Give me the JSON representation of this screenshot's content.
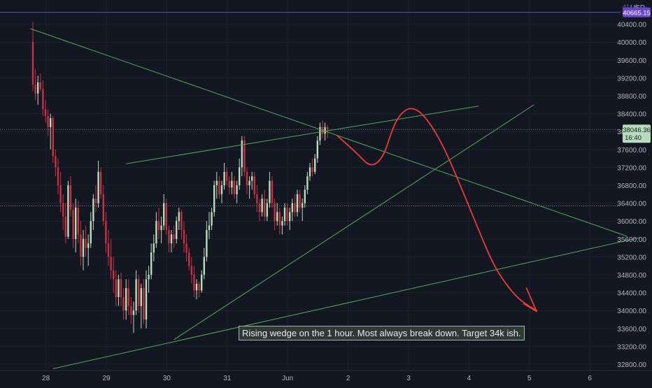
{
  "colors": {
    "background": "#131722",
    "grid": "#1e2230",
    "candle_up": "#b7dcbc",
    "candle_down": "#c9313f",
    "trendline": "#52a852",
    "drawing": "#ef3a34",
    "price_line": "#7a7f8a",
    "axis_text": "#b2b5be",
    "alert_line": "#5a4fc9",
    "alert_badge": "#6a46cc",
    "current_badge": "#b7dcbc",
    "annotation_bg": "#2f3a37"
  },
  "header": {
    "currency": "USD",
    "top_price_partial": "41...0"
  },
  "annotation": "Rising wedge on the 1 hour.  Most always break down.  Target 34k ish.",
  "current_price": {
    "label": "38046.36",
    "countdown": "16:40"
  },
  "alert_price": {
    "label": "40665.15"
  },
  "chart_data": {
    "type": "candlestick",
    "title": "",
    "xlabel": "",
    "ylabel": "",
    "ylim": [
      32650,
      41000
    ],
    "yticks": [
      32800,
      33200,
      33600,
      34000,
      34400,
      34800,
      35200,
      35600,
      36000,
      36400,
      36800,
      37200,
      37600,
      38000,
      38400,
      38800,
      39200,
      39600,
      40000,
      40400
    ],
    "ytick_labels": [
      "32800.00",
      "33200.00",
      "33600.00",
      "34000.00",
      "34400.00",
      "34800.00",
      "35200.00",
      "35600.00",
      "36000.00",
      "36400.00",
      "36800.00",
      "37200.00",
      "37600.00",
      "38000.00",
      "38400.00",
      "38800.00",
      "39200.00",
      "39600.00",
      "40000.00",
      "40400.00"
    ],
    "xticks": [
      {
        "label": "28",
        "t": 6
      },
      {
        "label": "29",
        "t": 30
      },
      {
        "label": "30",
        "t": 54
      },
      {
        "label": "31",
        "t": 78
      },
      {
        "label": "Jun",
        "t": 102
      },
      {
        "label": "2",
        "t": 126
      },
      {
        "label": "3",
        "t": 150
      },
      {
        "label": "4",
        "t": 174
      },
      {
        "label": "5",
        "t": 198
      },
      {
        "label": "6",
        "t": 222
      }
    ],
    "grid": true,
    "current_price": 38046.36,
    "alert_price": 40665.15,
    "horizontal_levels": [
      38046.36,
      36340
    ],
    "candles": [
      {
        "t": 0,
        "o": 40000,
        "h": 40450,
        "l": 38900,
        "c": 39050
      },
      {
        "t": 1,
        "o": 39050,
        "h": 39400,
        "l": 38700,
        "c": 38850
      },
      {
        "t": 2,
        "o": 38850,
        "h": 39250,
        "l": 38600,
        "c": 39100
      },
      {
        "t": 3,
        "o": 39100,
        "h": 39300,
        "l": 38900,
        "c": 38950
      },
      {
        "t": 4,
        "o": 38950,
        "h": 39150,
        "l": 38350,
        "c": 38500
      },
      {
        "t": 5,
        "o": 38500,
        "h": 38700,
        "l": 38200,
        "c": 38350
      },
      {
        "t": 6,
        "o": 38350,
        "h": 38500,
        "l": 37900,
        "c": 38100
      },
      {
        "t": 7,
        "o": 38100,
        "h": 38400,
        "l": 37600,
        "c": 38300
      },
      {
        "t": 8,
        "o": 38300,
        "h": 38350,
        "l": 37300,
        "c": 37450
      },
      {
        "t": 9,
        "o": 37450,
        "h": 37600,
        "l": 37000,
        "c": 37200
      },
      {
        "t": 10,
        "o": 37200,
        "h": 37400,
        "l": 36600,
        "c": 36800
      },
      {
        "t": 11,
        "o": 36800,
        "h": 37100,
        "l": 36200,
        "c": 36400
      },
      {
        "t": 12,
        "o": 36400,
        "h": 36600,
        "l": 35800,
        "c": 36100
      },
      {
        "t": 13,
        "o": 36100,
        "h": 36400,
        "l": 35500,
        "c": 35650
      },
      {
        "t": 14,
        "o": 35650,
        "h": 36900,
        "l": 35600,
        "c": 36800
      },
      {
        "t": 15,
        "o": 36800,
        "h": 37000,
        "l": 36100,
        "c": 36250
      },
      {
        "t": 16,
        "o": 36250,
        "h": 36400,
        "l": 35400,
        "c": 35600
      },
      {
        "t": 17,
        "o": 35600,
        "h": 36500,
        "l": 35300,
        "c": 36300
      },
      {
        "t": 18,
        "o": 36300,
        "h": 36450,
        "l": 35500,
        "c": 35700
      },
      {
        "t": 19,
        "o": 35700,
        "h": 36000,
        "l": 35000,
        "c": 35200
      },
      {
        "t": 20,
        "o": 35200,
        "h": 35800,
        "l": 34900,
        "c": 35600
      },
      {
        "t": 21,
        "o": 35600,
        "h": 35900,
        "l": 35200,
        "c": 35400
      },
      {
        "t": 22,
        "o": 35400,
        "h": 35700,
        "l": 35000,
        "c": 35500
      },
      {
        "t": 23,
        "o": 35500,
        "h": 36200,
        "l": 35400,
        "c": 36000
      },
      {
        "t": 24,
        "o": 36000,
        "h": 36600,
        "l": 35800,
        "c": 36500
      },
      {
        "t": 25,
        "o": 36500,
        "h": 36800,
        "l": 36200,
        "c": 36400
      },
      {
        "t": 26,
        "o": 36400,
        "h": 37350,
        "l": 36300,
        "c": 37100
      },
      {
        "t": 27,
        "o": 37100,
        "h": 37200,
        "l": 36500,
        "c": 36600
      },
      {
        "t": 28,
        "o": 36600,
        "h": 36800,
        "l": 35900,
        "c": 36000
      },
      {
        "t": 29,
        "o": 36000,
        "h": 36200,
        "l": 35300,
        "c": 35500
      },
      {
        "t": 30,
        "o": 35500,
        "h": 35800,
        "l": 35000,
        "c": 35200
      },
      {
        "t": 31,
        "o": 35200,
        "h": 35600,
        "l": 34700,
        "c": 34900
      },
      {
        "t": 32,
        "o": 34900,
        "h": 35200,
        "l": 34400,
        "c": 34700
      },
      {
        "t": 33,
        "o": 34700,
        "h": 34900,
        "l": 34100,
        "c": 34300
      },
      {
        "t": 34,
        "o": 34300,
        "h": 34800,
        "l": 34100,
        "c": 34700
      },
      {
        "t": 35,
        "o": 34700,
        "h": 34850,
        "l": 34100,
        "c": 34300
      },
      {
        "t": 36,
        "o": 34300,
        "h": 34500,
        "l": 33800,
        "c": 34000
      },
      {
        "t": 37,
        "o": 34000,
        "h": 34700,
        "l": 33800,
        "c": 34500
      },
      {
        "t": 38,
        "o": 34500,
        "h": 34700,
        "l": 33900,
        "c": 34100
      },
      {
        "t": 39,
        "o": 34100,
        "h": 34300,
        "l": 33700,
        "c": 33900
      },
      {
        "t": 40,
        "o": 33900,
        "h": 34200,
        "l": 33500,
        "c": 34000
      },
      {
        "t": 41,
        "o": 34000,
        "h": 34900,
        "l": 33900,
        "c": 34700
      },
      {
        "t": 42,
        "o": 34700,
        "h": 34800,
        "l": 33950,
        "c": 34100
      },
      {
        "t": 43,
        "o": 34100,
        "h": 34600,
        "l": 33600,
        "c": 34500
      },
      {
        "t": 44,
        "o": 34500,
        "h": 34700,
        "l": 33700,
        "c": 33800
      },
      {
        "t": 45,
        "o": 33800,
        "h": 34900,
        "l": 33600,
        "c": 34700
      },
      {
        "t": 46,
        "o": 34700,
        "h": 35000,
        "l": 34400,
        "c": 34800
      },
      {
        "t": 47,
        "o": 34800,
        "h": 35500,
        "l": 34700,
        "c": 35300
      },
      {
        "t": 48,
        "o": 35300,
        "h": 35700,
        "l": 35100,
        "c": 35500
      },
      {
        "t": 49,
        "o": 35500,
        "h": 36200,
        "l": 35400,
        "c": 36000
      },
      {
        "t": 50,
        "o": 36000,
        "h": 36300,
        "l": 35600,
        "c": 35800
      },
      {
        "t": 51,
        "o": 35800,
        "h": 36100,
        "l": 35500,
        "c": 35900
      },
      {
        "t": 52,
        "o": 35900,
        "h": 36600,
        "l": 35800,
        "c": 36400
      },
      {
        "t": 53,
        "o": 36400,
        "h": 36500,
        "l": 35700,
        "c": 35800
      },
      {
        "t": 54,
        "o": 35800,
        "h": 35900,
        "l": 35300,
        "c": 35500
      },
      {
        "t": 55,
        "o": 35500,
        "h": 35800,
        "l": 35300,
        "c": 35700
      },
      {
        "t": 56,
        "o": 35700,
        "h": 35900,
        "l": 35400,
        "c": 35600
      },
      {
        "t": 57,
        "o": 35600,
        "h": 36100,
        "l": 35500,
        "c": 36000
      },
      {
        "t": 58,
        "o": 36000,
        "h": 36300,
        "l": 35800,
        "c": 36200
      },
      {
        "t": 59,
        "o": 36200,
        "h": 36250,
        "l": 35600,
        "c": 35800
      },
      {
        "t": 60,
        "o": 35800,
        "h": 36000,
        "l": 35300,
        "c": 35500
      },
      {
        "t": 61,
        "o": 35500,
        "h": 35700,
        "l": 35100,
        "c": 35300
      },
      {
        "t": 62,
        "o": 35300,
        "h": 35400,
        "l": 34900,
        "c": 35000
      },
      {
        "t": 63,
        "o": 35000,
        "h": 35200,
        "l": 34600,
        "c": 34800
      },
      {
        "t": 64,
        "o": 34800,
        "h": 35000,
        "l": 34300,
        "c": 34450
      },
      {
        "t": 65,
        "o": 34450,
        "h": 34700,
        "l": 34250,
        "c": 34600
      },
      {
        "t": 66,
        "o": 34600,
        "h": 34650,
        "l": 34300,
        "c": 34450
      },
      {
        "t": 67,
        "o": 34450,
        "h": 34900,
        "l": 34400,
        "c": 34800
      },
      {
        "t": 68,
        "o": 34800,
        "h": 35400,
        "l": 34700,
        "c": 35200
      },
      {
        "t": 69,
        "o": 35200,
        "h": 36000,
        "l": 35100,
        "c": 35800
      },
      {
        "t": 70,
        "o": 35800,
        "h": 36200,
        "l": 35600,
        "c": 35900
      },
      {
        "t": 71,
        "o": 35900,
        "h": 36300,
        "l": 35800,
        "c": 36200
      },
      {
        "t": 72,
        "o": 36200,
        "h": 36900,
        "l": 36100,
        "c": 36800
      },
      {
        "t": 73,
        "o": 36800,
        "h": 37100,
        "l": 36500,
        "c": 36900
      },
      {
        "t": 74,
        "o": 36900,
        "h": 37000,
        "l": 36500,
        "c": 36600
      },
      {
        "t": 75,
        "o": 36600,
        "h": 36900,
        "l": 36400,
        "c": 36800
      },
      {
        "t": 76,
        "o": 36800,
        "h": 37300,
        "l": 36700,
        "c": 37100
      },
      {
        "t": 77,
        "o": 37100,
        "h": 37200,
        "l": 36800,
        "c": 36900
      },
      {
        "t": 78,
        "o": 36900,
        "h": 37000,
        "l": 36600,
        "c": 36750
      },
      {
        "t": 79,
        "o": 36750,
        "h": 37100,
        "l": 36600,
        "c": 36900
      },
      {
        "t": 80,
        "o": 36900,
        "h": 37000,
        "l": 36500,
        "c": 36600
      },
      {
        "t": 81,
        "o": 36600,
        "h": 36900,
        "l": 36400,
        "c": 36800
      },
      {
        "t": 82,
        "o": 36800,
        "h": 37400,
        "l": 36700,
        "c": 37200
      },
      {
        "t": 83,
        "o": 37200,
        "h": 37900,
        "l": 37000,
        "c": 37800
      },
      {
        "t": 84,
        "o": 37800,
        "h": 37900,
        "l": 37000,
        "c": 37100
      },
      {
        "t": 85,
        "o": 37100,
        "h": 37200,
        "l": 36600,
        "c": 36800
      },
      {
        "t": 86,
        "o": 36800,
        "h": 37000,
        "l": 36500,
        "c": 36900
      },
      {
        "t": 87,
        "o": 36900,
        "h": 37100,
        "l": 36700,
        "c": 37000
      },
      {
        "t": 88,
        "o": 37000,
        "h": 37100,
        "l": 36500,
        "c": 36600
      },
      {
        "t": 89,
        "o": 36600,
        "h": 36800,
        "l": 36200,
        "c": 36400
      },
      {
        "t": 90,
        "o": 36400,
        "h": 36500,
        "l": 36000,
        "c": 36200
      },
      {
        "t": 91,
        "o": 36200,
        "h": 36600,
        "l": 36100,
        "c": 36500
      },
      {
        "t": 92,
        "o": 36500,
        "h": 36700,
        "l": 36000,
        "c": 36100
      },
      {
        "t": 93,
        "o": 36100,
        "h": 36500,
        "l": 36000,
        "c": 36400
      },
      {
        "t": 94,
        "o": 36400,
        "h": 37100,
        "l": 36300,
        "c": 36900
      },
      {
        "t": 95,
        "o": 36900,
        "h": 37000,
        "l": 36300,
        "c": 36400
      },
      {
        "t": 96,
        "o": 36400,
        "h": 36500,
        "l": 35800,
        "c": 36000
      },
      {
        "t": 97,
        "o": 36000,
        "h": 36400,
        "l": 35900,
        "c": 36200
      },
      {
        "t": 98,
        "o": 36200,
        "h": 36300,
        "l": 35700,
        "c": 35900
      },
      {
        "t": 99,
        "o": 35900,
        "h": 36100,
        "l": 35700,
        "c": 36000
      },
      {
        "t": 100,
        "o": 36000,
        "h": 36400,
        "l": 35900,
        "c": 36300
      },
      {
        "t": 101,
        "o": 36300,
        "h": 36400,
        "l": 35900,
        "c": 36000
      },
      {
        "t": 102,
        "o": 36000,
        "h": 36300,
        "l": 35800,
        "c": 36200
      },
      {
        "t": 103,
        "o": 36200,
        "h": 36500,
        "l": 36000,
        "c": 36400
      },
      {
        "t": 104,
        "o": 36400,
        "h": 36600,
        "l": 36100,
        "c": 36200
      },
      {
        "t": 105,
        "o": 36200,
        "h": 36700,
        "l": 36100,
        "c": 36600
      },
      {
        "t": 106,
        "o": 36600,
        "h": 36700,
        "l": 36200,
        "c": 36300
      },
      {
        "t": 107,
        "o": 36300,
        "h": 36500,
        "l": 36000,
        "c": 36400
      },
      {
        "t": 108,
        "o": 36400,
        "h": 36800,
        "l": 36300,
        "c": 36700
      },
      {
        "t": 109,
        "o": 36700,
        "h": 37100,
        "l": 36600,
        "c": 37000
      },
      {
        "t": 110,
        "o": 37000,
        "h": 37300,
        "l": 36900,
        "c": 37200
      },
      {
        "t": 111,
        "o": 37200,
        "h": 37400,
        "l": 37000,
        "c": 37100
      },
      {
        "t": 112,
        "o": 37100,
        "h": 37500,
        "l": 37050,
        "c": 37400
      },
      {
        "t": 113,
        "o": 37400,
        "h": 37900,
        "l": 37300,
        "c": 37800
      },
      {
        "t": 114,
        "o": 37800,
        "h": 38200,
        "l": 37700,
        "c": 38100
      },
      {
        "t": 115,
        "o": 38100,
        "h": 38250,
        "l": 37850,
        "c": 37950
      },
      {
        "t": 116,
        "o": 37950,
        "h": 38200,
        "l": 37800,
        "c": 38100
      },
      {
        "t": 117,
        "o": 38100,
        "h": 38150,
        "l": 37850,
        "c": 38046.36
      }
    ],
    "trendlines": [
      {
        "name": "descending line",
        "points": [
          [
            -1,
            40300
          ],
          [
            236,
            35660
          ]
        ]
      },
      {
        "name": "wedge upper",
        "points": [
          [
            37,
            37280
          ],
          [
            177,
            38570
          ]
        ]
      },
      {
        "name": "wedge lower",
        "points": [
          [
            56,
            33350
          ],
          [
            199,
            38600
          ]
        ]
      },
      {
        "name": "long support",
        "points": [
          [
            8,
            32700
          ],
          [
            241,
            35630
          ]
        ]
      }
    ],
    "projection": [
      [
        121,
        37900
      ],
      [
        129,
        37500
      ],
      [
        134,
        37200
      ],
      [
        139,
        37400
      ],
      [
        143,
        38100
      ],
      [
        146,
        38400
      ],
      [
        150,
        38550
      ],
      [
        155,
        38400
      ],
      [
        162,
        37800
      ],
      [
        169,
        36900
      ],
      [
        177,
        35800
      ],
      [
        183,
        35000
      ],
      [
        189,
        34500
      ],
      [
        194,
        34200
      ],
      [
        200,
        34000
      ]
    ],
    "projection_arrow": [
      [
        196,
        34500
      ],
      [
        200,
        33980
      ],
      [
        195,
        34150
      ]
    ]
  }
}
